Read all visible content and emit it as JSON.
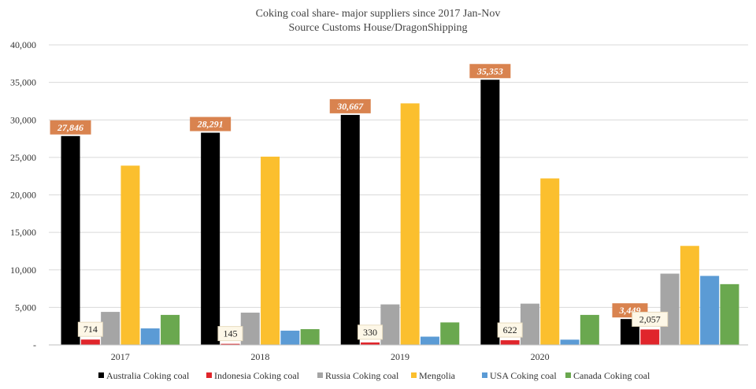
{
  "chart_data": {
    "type": "bar",
    "title": "Coking coal share- major suppliers since 2017 Jan-Nov",
    "subtitle": "Source Customs House/DragonShipping",
    "categories": [
      "2017",
      "2018",
      "2019",
      "2020",
      ""
    ],
    "ylim": [
      0,
      40000
    ],
    "yticks": [
      "-",
      "5,000",
      "10,000",
      "15,000",
      "20,000",
      "25,000",
      "30,000",
      "35,000",
      "40,000"
    ],
    "grid": true,
    "legend_position": "bottom",
    "series": [
      {
        "name": "Australia Coking coal",
        "color": "#000000",
        "values": [
          27846,
          28291,
          30667,
          35353,
          3449
        ]
      },
      {
        "name": "Indonesia Coking coal",
        "color": "#e0252b",
        "values": [
          714,
          145,
          330,
          622,
          2057
        ]
      },
      {
        "name": "Russia Coking coal",
        "color": "#a5a5a5",
        "values": [
          4400,
          4300,
          5400,
          5500,
          9500
        ]
      },
      {
        "name": "Mengolia",
        "color": "#fbbf2e",
        "values": [
          23900,
          25100,
          32200,
          22200,
          13200
        ]
      },
      {
        "name": "USA Coking coal",
        "color": "#5b9bd5",
        "values": [
          2200,
          1900,
          1100,
          700,
          9200
        ]
      },
      {
        "name": "Canada Coking coal",
        "color": "#6aa84f",
        "values": [
          4000,
          2100,
          3000,
          4000,
          8100
        ]
      }
    ],
    "data_labels": [
      {
        "series": 0,
        "category": 0,
        "text": "27,846",
        "style": "highlight"
      },
      {
        "series": 0,
        "category": 1,
        "text": "28,291",
        "style": "highlight"
      },
      {
        "series": 0,
        "category": 2,
        "text": "30,667",
        "style": "highlight"
      },
      {
        "series": 0,
        "category": 3,
        "text": "35,353",
        "style": "highlight"
      },
      {
        "series": 0,
        "category": 4,
        "text": "3,449",
        "style": "highlight"
      },
      {
        "series": 1,
        "category": 0,
        "text": "714",
        "style": "plain"
      },
      {
        "series": 1,
        "category": 1,
        "text": "145",
        "style": "plain"
      },
      {
        "series": 1,
        "category": 2,
        "text": "330",
        "style": "plain"
      },
      {
        "series": 1,
        "category": 3,
        "text": "622",
        "style": "plain"
      },
      {
        "series": 1,
        "category": 4,
        "text": "2,057",
        "style": "plain"
      }
    ],
    "highlight_color": "#d9834f"
  }
}
